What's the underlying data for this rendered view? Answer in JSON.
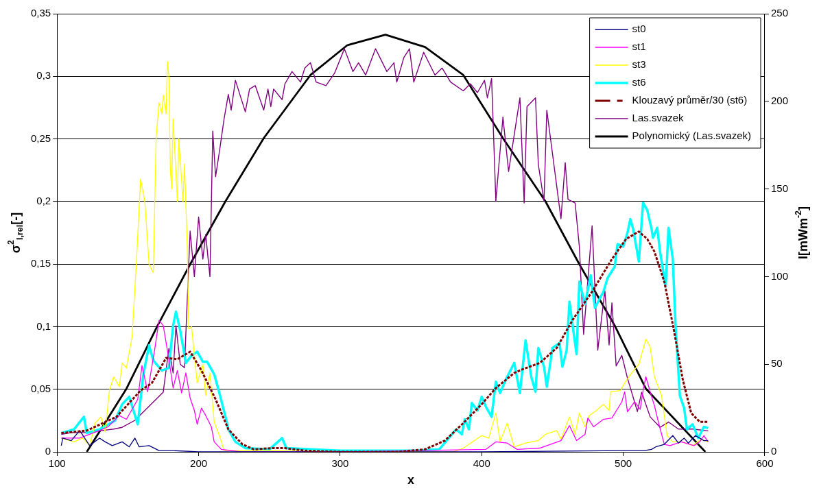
{
  "chart_data": {
    "type": "line",
    "xlabel": "x",
    "ylabel": "σ$^{2}$$_{I,rel}$[-]",
    "y2label": "I[mWm$^{-2}$]",
    "xlim": [
      100,
      600
    ],
    "xticks": [
      100,
      200,
      300,
      400,
      500,
      600
    ],
    "ylim": [
      0,
      0.35
    ],
    "yticks": [
      {
        "value": 0,
        "label": "0"
      },
      {
        "value": 0.05,
        "label": "0,05"
      },
      {
        "value": 0.1,
        "label": "0,1"
      },
      {
        "value": 0.15,
        "label": "0,15"
      },
      {
        "value": 0.2,
        "label": "0,2"
      },
      {
        "value": 0.25,
        "label": "0,25"
      },
      {
        "value": 0.3,
        "label": "0,3"
      },
      {
        "value": 0.35,
        "label": "0,35"
      }
    ],
    "y2lim": [
      0,
      250
    ],
    "y2ticks": [
      0,
      50,
      100,
      150,
      200,
      250
    ],
    "grid": "y",
    "legend": "top right",
    "marker": "none",
    "line_style": "solid",
    "series": [
      {
        "name": "st0",
        "color": "#000080",
        "x": [
          103,
          104,
          110,
          116,
          123,
          130,
          134,
          139,
          146,
          151,
          155,
          158,
          165,
          172,
          182,
          200,
          300,
          400,
          500,
          515,
          520,
          523,
          529,
          535,
          539,
          543,
          546,
          551,
          557,
          560
        ],
        "values": [
          0.005,
          0.011,
          0.009,
          0.017,
          0.005,
          0.011,
          0.008,
          0.005,
          0.008,
          0.004,
          0.011,
          0.004,
          0.005,
          0.001,
          0.001,
          0,
          0,
          0,
          0.001,
          0.001,
          0.002,
          0.004,
          0.006,
          0.013,
          0.007,
          0.011,
          0.007,
          0.013,
          0.009,
          0.009
        ]
      },
      {
        "name": "st1",
        "color": "#ff00ff",
        "x": [
          103,
          116,
          130,
          136,
          144,
          149,
          154,
          157,
          160,
          164,
          169,
          172,
          175,
          179,
          182,
          185,
          188,
          191,
          194,
          197,
          199,
          202,
          205,
          209,
          211,
          216,
          230,
          300,
          403,
          410,
          418,
          425,
          441,
          456,
          462,
          467,
          473,
          475,
          479,
          486,
          492,
          499,
          501,
          503,
          508,
          512,
          514,
          516,
          519,
          522,
          525,
          529,
          533,
          541,
          550,
          554,
          557,
          560
        ],
        "values": [
          0.011,
          0.011,
          0.017,
          0.02,
          0.029,
          0.026,
          0.036,
          0.042,
          0.069,
          0.048,
          0.082,
          0.105,
          0.101,
          0.074,
          0.051,
          0.065,
          0.047,
          0.063,
          0.043,
          0.033,
          0.022,
          0.035,
          0.029,
          0.02,
          0.008,
          0.002,
          0,
          0,
          0.002,
          0.008,
          0.007,
          0.002,
          0.003,
          0.009,
          0.021,
          0.009,
          0.014,
          0.027,
          0.02,
          0.026,
          0.027,
          0.04,
          0.048,
          0.032,
          0.04,
          0.034,
          0.049,
          0.06,
          0.048,
          0.037,
          0.023,
          0.006,
          0.005,
          0.008,
          0.005,
          0.008,
          0.013,
          0.008
        ]
      },
      {
        "name": "st3",
        "color": "#ffff00",
        "x": [
          103,
          112,
          118,
          123,
          127,
          131,
          134,
          137,
          140,
          144,
          146,
          149,
          153,
          156,
          159,
          162,
          165,
          168,
          170,
          172,
          174,
          175,
          177,
          178,
          179,
          180,
          181,
          182,
          185,
          186,
          189,
          190,
          192,
          193,
          195,
          199,
          203,
          205,
          208,
          211,
          215,
          218,
          250,
          300,
          380,
          387,
          400,
          405,
          410,
          413,
          418,
          423,
          431,
          440,
          445,
          453,
          456,
          462,
          466,
          469,
          473,
          476,
          481,
          486,
          490,
          491,
          498,
          501,
          506,
          511,
          514,
          516,
          519,
          522,
          527,
          531,
          535,
          542,
          549,
          555,
          560
        ],
        "values": [
          0.011,
          0.008,
          0.011,
          0.005,
          0.023,
          0.028,
          0.016,
          0.049,
          0.06,
          0.052,
          0.071,
          0.067,
          0.092,
          0.15,
          0.218,
          0.2,
          0.15,
          0.143,
          0.251,
          0.279,
          0.27,
          0.285,
          0.27,
          0.312,
          0.3,
          0.226,
          0.21,
          0.266,
          0.2,
          0.25,
          0.2,
          0.23,
          0.164,
          0.098,
          0.1,
          0.055,
          0.07,
          0.045,
          0.063,
          0.024,
          0.012,
          0.001,
          0.001,
          0,
          0,
          0.003,
          0.013,
          0.011,
          0.031,
          0.008,
          0.023,
          0.004,
          0.007,
          0.009,
          0.014,
          0.017,
          0.01,
          0.028,
          0.014,
          0.031,
          0.02,
          0.029,
          0.033,
          0.038,
          0.033,
          0.048,
          0.049,
          0.055,
          0.063,
          0.07,
          0.082,
          0.09,
          0.084,
          0.06,
          0.045,
          0.013,
          0.008,
          0.008,
          0.005,
          0.01,
          0.008
        ]
      },
      {
        "name": "st6",
        "color": "#00ffff",
        "x": [
          103,
          112,
          119,
          121,
          130,
          141,
          146,
          151,
          157,
          161,
          165,
          168,
          174,
          179,
          182,
          184,
          187,
          191,
          195,
          199,
          203,
          206,
          211,
          214,
          219,
          221,
          226,
          233,
          250,
          259,
          262,
          300,
          354,
          370,
          382,
          386,
          388,
          391,
          393,
          397,
          400,
          403,
          407,
          410,
          413,
          418,
          423,
          427,
          431,
          435,
          438,
          440,
          444,
          446,
          450,
          455,
          457,
          460,
          462,
          467,
          469,
          473,
          477,
          480,
          486,
          489,
          494,
          496,
          500,
          503,
          505,
          507,
          511,
          514,
          517,
          520,
          521,
          524,
          526,
          530,
          532,
          535,
          537,
          540,
          543,
          545,
          549,
          553,
          557,
          560
        ],
        "values": [
          0.015,
          0.018,
          0.028,
          0.015,
          0.018,
          0.025,
          0.038,
          0.044,
          0.022,
          0.062,
          0.085,
          0.073,
          0.065,
          0.067,
          0.101,
          0.112,
          0.097,
          0.071,
          0.077,
          0.08,
          0.072,
          0.072,
          0.062,
          0.05,
          0.028,
          0.018,
          0.008,
          0.003,
          0.002,
          0.011,
          0.003,
          0.001,
          0.001,
          0.002,
          0.018,
          0.014,
          0.026,
          0.018,
          0.039,
          0.033,
          0.044,
          0.036,
          0.028,
          0.056,
          0.047,
          0.06,
          0.071,
          0.047,
          0.089,
          0.06,
          0.048,
          0.083,
          0.068,
          0.052,
          0.083,
          0.087,
          0.068,
          0.081,
          0.12,
          0.078,
          0.136,
          0.118,
          0.141,
          0.115,
          0.128,
          0.139,
          0.148,
          0.166,
          0.164,
          0.175,
          0.186,
          0.178,
          0.152,
          0.199,
          0.193,
          0.178,
          0.171,
          0.179,
          0.16,
          0.132,
          0.179,
          0.154,
          0.1,
          0.045,
          0.035,
          0.018,
          0.022,
          0.011,
          0.02,
          0.019
        ]
      },
      {
        "name": "Klouzavý průměr/30 (st6)",
        "color": "#800000",
        "line_style": "dashed",
        "x": [
          103,
          121,
          142,
          159,
          167,
          177,
          185,
          194,
          202,
          212,
          221,
          231,
          239,
          252,
          261,
          275,
          300,
          340,
          360,
          374,
          387,
          400,
          410,
          423,
          429,
          441,
          453,
          464,
          478,
          492,
          502,
          511,
          517,
          522,
          529,
          536,
          542,
          548,
          554,
          560
        ],
        "values": [
          0.015,
          0.017,
          0.028,
          0.049,
          0.055,
          0.075,
          0.074,
          0.08,
          0.065,
          0.042,
          0.018,
          0.006,
          0.002,
          0.003,
          0.003,
          0.001,
          0,
          0,
          0.002,
          0.009,
          0.023,
          0.038,
          0.051,
          0.063,
          0.066,
          0.071,
          0.083,
          0.105,
          0.128,
          0.154,
          0.17,
          0.176,
          0.17,
          0.16,
          0.136,
          0.096,
          0.058,
          0.031,
          0.024,
          0.024
        ]
      },
      {
        "name": "Las.svazek",
        "color": "#800080",
        "axis": "y2",
        "x": [
          103,
          110,
          120,
          130,
          140,
          146,
          155,
          165,
          175,
          179,
          182,
          184,
          187,
          190,
          194,
          197,
          200,
          203,
          205,
          208,
          210,
          212,
          215,
          218,
          221,
          223,
          226,
          233,
          236,
          240,
          246,
          249,
          251,
          253,
          259,
          261,
          266,
          272,
          275,
          279,
          283,
          290,
          296,
          303,
          309,
          313,
          318,
          325,
          333,
          338,
          340,
          345,
          349,
          352,
          359,
          367,
          372,
          378,
          387,
          392,
          397,
          402,
          404,
          407,
          410,
          415,
          419,
          427,
          430,
          432,
          438,
          440,
          444,
          446,
          456,
          459,
          461,
          466,
          469,
          472,
          478,
          482,
          487,
          490,
          492,
          495,
          499,
          503,
          510,
          513,
          519,
          526,
          532,
          539,
          549,
          560
        ],
        "values": [
          10,
          11,
          11,
          12,
          13,
          14,
          18,
          26,
          34,
          59,
          45,
          72,
          50,
          48,
          126,
          100,
          134,
          110,
          124,
          100,
          183,
          157,
          173,
          190,
          204,
          195,
          212,
          194,
          207,
          209,
          195,
          207,
          197,
          207,
          201,
          210,
          217,
          211,
          219,
          222,
          211,
          209,
          216,
          230,
          217,
          222,
          215,
          230,
          217,
          222,
          211,
          225,
          230,
          211,
          228,
          215,
          219,
          211,
          206,
          210,
          205,
          212,
          202,
          213,
          143,
          191,
          160,
          202,
          142,
          197,
          202,
          164,
          143,
          195,
          133,
          165,
          144,
          142,
          117,
          67,
          129,
          58,
          92,
          61,
          85,
          49,
          55,
          42,
          23,
          34,
          20,
          14,
          17,
          13,
          13,
          12
        ]
      },
      {
        "name": "Polynomický (Las.svazek)",
        "color": "#000000",
        "axis": "y2",
        "x": [
          121,
          149,
          171,
          194,
          219,
          246,
          279,
          305,
          332,
          360,
          387,
          415,
          445,
          469,
          494,
          516,
          558
        ],
        "values": [
          0,
          36,
          72,
          107,
          143,
          179,
          215,
          232,
          238,
          231,
          215,
          179,
          143,
          107,
          72,
          36,
          0
        ]
      }
    ]
  }
}
